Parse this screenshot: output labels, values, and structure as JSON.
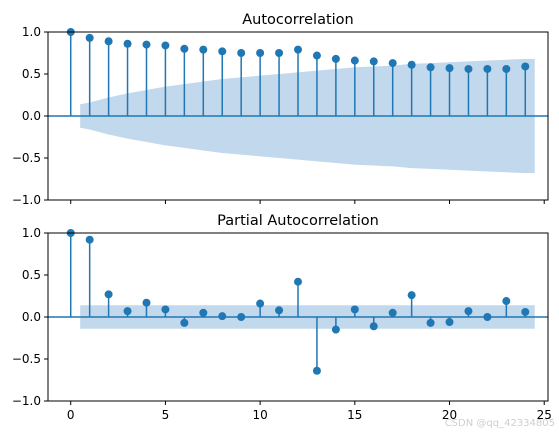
{
  "watermark": "CSDN @qq_42334805",
  "colors": {
    "series": "#1f77b4",
    "band": "#c2d8ec",
    "axis": "#000000"
  },
  "chart_data": [
    {
      "type": "stem",
      "title": "Autocorrelation",
      "xlabel": "",
      "ylabel": "",
      "xlim": [
        -1.2,
        25.2
      ],
      "ylim": [
        -1.0,
        1.0
      ],
      "xticks": [
        0,
        5,
        10,
        15,
        20,
        25
      ],
      "xtick_labels_visible": false,
      "yticks": [
        -1.0,
        -0.5,
        0.0,
        0.5,
        1.0
      ],
      "ytick_labels": [
        "−1.0",
        "−0.5",
        "0.0",
        "0.5",
        "1.0"
      ],
      "grid": false,
      "lags": [
        0,
        1,
        2,
        3,
        4,
        5,
        6,
        7,
        8,
        9,
        10,
        11,
        12,
        13,
        14,
        15,
        16,
        17,
        18,
        19,
        20,
        21,
        22,
        23,
        24
      ],
      "values": [
        1.0,
        0.93,
        0.89,
        0.86,
        0.85,
        0.84,
        0.8,
        0.79,
        0.77,
        0.75,
        0.75,
        0.75,
        0.79,
        0.72,
        0.68,
        0.66,
        0.65,
        0.63,
        0.61,
        0.58,
        0.57,
        0.56,
        0.56,
        0.56,
        0.59
      ],
      "confidence_band": {
        "lags": [
          0.5,
          1,
          2,
          3,
          4,
          5,
          6,
          7,
          8,
          9,
          10,
          11,
          12,
          13,
          14,
          15,
          16,
          17,
          18,
          19,
          20,
          21,
          22,
          23,
          24,
          24.5
        ],
        "upper": [
          0.14,
          0.16,
          0.22,
          0.27,
          0.31,
          0.35,
          0.38,
          0.41,
          0.44,
          0.46,
          0.48,
          0.5,
          0.52,
          0.54,
          0.56,
          0.58,
          0.59,
          0.6,
          0.62,
          0.63,
          0.64,
          0.65,
          0.66,
          0.67,
          0.68,
          0.68
        ]
      }
    },
    {
      "type": "stem",
      "title": "Partial Autocorrelation",
      "xlabel": "",
      "ylabel": "",
      "xlim": [
        -1.2,
        25.2
      ],
      "ylim": [
        -1.0,
        1.0
      ],
      "xticks": [
        0,
        5,
        10,
        15,
        20,
        25
      ],
      "xtick_labels": [
        "0",
        "5",
        "10",
        "15",
        "20",
        "25"
      ],
      "yticks": [
        -1.0,
        -0.5,
        0.0,
        0.5,
        1.0
      ],
      "ytick_labels": [
        "−1.0",
        "−0.5",
        "0.0",
        "0.5",
        "1.0"
      ],
      "grid": false,
      "lags": [
        0,
        1,
        2,
        3,
        4,
        5,
        6,
        7,
        8,
        9,
        10,
        11,
        12,
        13,
        14,
        15,
        16,
        17,
        18,
        19,
        20,
        21,
        22,
        23,
        24
      ],
      "values": [
        1.0,
        0.92,
        0.27,
        0.07,
        0.17,
        0.09,
        -0.07,
        0.05,
        0.01,
        0.0,
        0.16,
        0.08,
        0.42,
        -0.64,
        -0.15,
        0.09,
        -0.11,
        0.05,
        0.26,
        -0.07,
        -0.06,
        0.07,
        0.0,
        0.19,
        0.06
      ],
      "confidence_band": {
        "lags": [
          0.5,
          24.5
        ],
        "upper": [
          0.14,
          0.14
        ]
      }
    }
  ]
}
